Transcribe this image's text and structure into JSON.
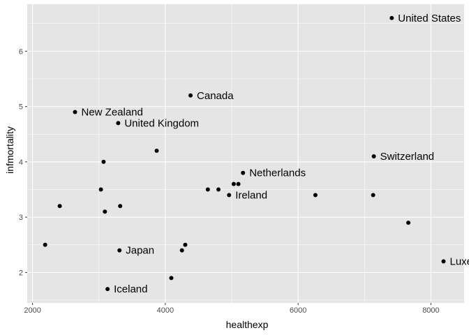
{
  "chart_data": {
    "type": "scatter",
    "title": "",
    "xlabel": "healthexp",
    "ylabel": "infmortality",
    "xlim": [
      1920,
      8500
    ],
    "ylim": [
      1.45,
      6.85
    ],
    "xticks": [
      2000,
      4000,
      6000,
      8000
    ],
    "xtick_labels": [
      "2000",
      "4000",
      "6000",
      "8000"
    ],
    "yticks": [
      2,
      3,
      4,
      5,
      6
    ],
    "ytick_labels": [
      "2",
      "3",
      "4",
      "5",
      "6"
    ],
    "grid": true,
    "panel_color": "#e5e5e5",
    "grid_color": "#ffffff",
    "point_color": "#000000",
    "points": [
      {
        "x": 7410,
        "y": 6.6,
        "label": "United States"
      },
      {
        "x": 4380,
        "y": 5.2,
        "label": "Canada"
      },
      {
        "x": 2640,
        "y": 4.9,
        "label": "New Zealand"
      },
      {
        "x": 3290,
        "y": 4.7,
        "label": "United Kingdom"
      },
      {
        "x": 3870,
        "y": 4.2,
        "label": ""
      },
      {
        "x": 7140,
        "y": 4.1,
        "label": "Switzerland"
      },
      {
        "x": 3070,
        "y": 4.0,
        "label": ""
      },
      {
        "x": 5170,
        "y": 3.8,
        "label": "Netherlands"
      },
      {
        "x": 5030,
        "y": 3.6,
        "label": ""
      },
      {
        "x": 5100,
        "y": 3.6,
        "label": ""
      },
      {
        "x": 3030,
        "y": 3.5,
        "label": ""
      },
      {
        "x": 4640,
        "y": 3.5,
        "label": ""
      },
      {
        "x": 4800,
        "y": 3.5,
        "label": ""
      },
      {
        "x": 4960,
        "y": 3.4,
        "label": "Ireland"
      },
      {
        "x": 6260,
        "y": 3.4,
        "label": ""
      },
      {
        "x": 7130,
        "y": 3.4,
        "label": ""
      },
      {
        "x": 2410,
        "y": 3.2,
        "label": ""
      },
      {
        "x": 3320,
        "y": 3.2,
        "label": ""
      },
      {
        "x": 3090,
        "y": 3.1,
        "label": ""
      },
      {
        "x": 7660,
        "y": 2.9,
        "label": ""
      },
      {
        "x": 2190,
        "y": 2.5,
        "label": ""
      },
      {
        "x": 4300,
        "y": 2.5,
        "label": ""
      },
      {
        "x": 3310,
        "y": 2.4,
        "label": "Japan"
      },
      {
        "x": 4250,
        "y": 2.4,
        "label": ""
      },
      {
        "x": 8190,
        "y": 2.2,
        "label": "Luxe"
      },
      {
        "x": 4090,
        "y": 1.9,
        "label": ""
      },
      {
        "x": 3130,
        "y": 1.7,
        "label": "Iceland"
      }
    ]
  }
}
